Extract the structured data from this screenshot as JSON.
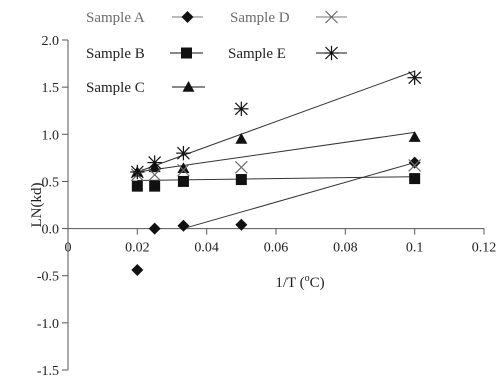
{
  "chart_data": {
    "type": "scatter",
    "title": "",
    "xlabel_main": "1/T (",
    "xlabel_sup": "o",
    "xlabel_end": "C)",
    "ylabel": "LN(kd)",
    "xlim": [
      0,
      0.12
    ],
    "ylim": [
      -1.5,
      2.0
    ],
    "x_ticks": [
      0,
      0.02,
      0.04,
      0.06,
      0.08,
      0.1,
      0.12
    ],
    "x_tick_labels": [
      "0",
      "0.02",
      "0.04",
      "0.06",
      "0.08",
      "0.1",
      "0.12"
    ],
    "y_ticks": [
      -1.5,
      -1.0,
      -0.5,
      0.0,
      0.5,
      1.0,
      1.5,
      2.0
    ],
    "y_tick_labels": [
      "-1.5",
      "-1.0",
      "-0.5",
      "0.0",
      "0.5",
      "1.0",
      "1.5",
      "2.0"
    ],
    "grid": false,
    "legend_position": "top",
    "series": [
      {
        "name": "Sample A",
        "marker": "diamond",
        "x": [
          0.02,
          0.025,
          0.0333,
          0.05,
          0.1
        ],
        "y": [
          -0.44,
          0.0,
          0.03,
          0.04,
          0.7
        ],
        "trend": [
          [
            0.0333,
            0.0
          ],
          [
            0.1,
            0.7
          ]
        ]
      },
      {
        "name": "Sample B",
        "marker": "square",
        "x": [
          0.02,
          0.025,
          0.0333,
          0.05,
          0.1
        ],
        "y": [
          0.45,
          0.45,
          0.5,
          0.52,
          0.53
        ],
        "trend": [
          [
            0.02,
            0.51
          ],
          [
            0.1,
            0.55
          ]
        ]
      },
      {
        "name": "Sample C",
        "marker": "triangle",
        "x": [
          0.02,
          0.025,
          0.0333,
          0.05,
          0.1
        ],
        "y": [
          0.6,
          0.65,
          0.64,
          0.95,
          0.97
        ],
        "trend": [
          [
            0.02,
            0.6
          ],
          [
            0.1,
            1.02
          ]
        ]
      },
      {
        "name": "Sample D",
        "marker": "x",
        "x": [
          0.02,
          0.025,
          0.0333,
          0.05,
          0.1
        ],
        "y": [
          0.57,
          0.57,
          0.62,
          0.65,
          0.67
        ],
        "trend": []
      },
      {
        "name": "Sample E",
        "marker": "asterisk",
        "x": [
          0.02,
          0.025,
          0.0333,
          0.05,
          0.1
        ],
        "y": [
          0.6,
          0.7,
          0.8,
          1.27,
          1.6
        ],
        "trend": [
          [
            0.02,
            0.6
          ],
          [
            0.1,
            1.67
          ]
        ]
      }
    ]
  },
  "colors": {
    "marker": "#111111",
    "marker_light": "#6b6b6b",
    "axis": "#555555",
    "trend": "#333333"
  }
}
